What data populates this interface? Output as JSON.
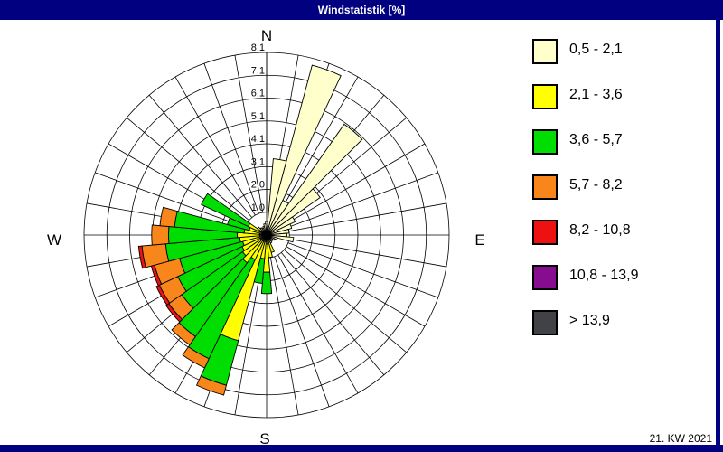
{
  "title_bar": {
    "title": "Windstatistik [%]"
  },
  "status_bar": {
    "week_label": "21. KW 2021"
  },
  "colors": {
    "frame": "#000080",
    "background": "#ffffff",
    "grid": "#000000",
    "cream": "#ffffcc",
    "yellow": "#ffff00",
    "green": "#00dd00",
    "orange": "#f8861b",
    "red": "#ee1111",
    "purple": "#880c90",
    "gray": "#404245"
  },
  "legend": {
    "items": [
      {
        "label": "0,5 - 2,1",
        "color": "#ffffcc"
      },
      {
        "label": "2,1 - 3,6",
        "color": "#ffff00"
      },
      {
        "label": "3,6 - 5,7",
        "color": "#00dd00"
      },
      {
        "label": "5,7 - 8,2",
        "color": "#f8861b"
      },
      {
        "label": "8,2 - 10,8",
        "color": "#ee1111"
      },
      {
        "label": "10,8 - 13,9",
        "color": "#880c90"
      },
      {
        "label": "> 13,9",
        "color": "#404245"
      }
    ]
  },
  "chart_data": {
    "type": "windrose-stacked-bar",
    "unit": "%",
    "title": "Windstatistik [%]",
    "compass_labels": {
      "n": "N",
      "e": "E",
      "s": "S",
      "w": "W"
    },
    "ring_labels": [
      "1,0",
      "2,0",
      "3,1",
      "4,1",
      "5,1",
      "6,1",
      "7,1",
      "8,1"
    ],
    "max_value": 8.1,
    "rings": 8,
    "sector_width_deg": 10,
    "speed_classes": [
      "0,5 - 2,1",
      "2,1 - 3,6",
      "3,6 - 5,7",
      "5,7 - 8,2",
      "8,2 - 10,8",
      "10,8 - 13,9",
      "> 13,9"
    ],
    "sectors": [
      {
        "azimuth": 0,
        "cumulative": [
          0.6
        ]
      },
      {
        "azimuth": 10,
        "cumulative": [
          3.4
        ]
      },
      {
        "azimuth": 20,
        "cumulative": [
          7.8
        ]
      },
      {
        "azimuth": 30,
        "cumulative": [
          1.7
        ]
      },
      {
        "azimuth": 40,
        "cumulative": [
          6.0
        ]
      },
      {
        "azimuth": 50,
        "cumulative": [
          2.9
        ]
      },
      {
        "azimuth": 60,
        "cumulative": [
          1.4
        ]
      },
      {
        "azimuth": 70,
        "cumulative": [
          1.15
        ]
      },
      {
        "azimuth": 80,
        "cumulative": [
          1.0
        ]
      },
      {
        "azimuth": 90,
        "cumulative": [
          0.9
        ]
      },
      {
        "azimuth": 100,
        "cumulative": [
          1.2
        ]
      },
      {
        "azimuth": 110,
        "cumulative": [
          0.5
        ]
      },
      {
        "azimuth": 120,
        "cumulative": [
          0.4
        ]
      },
      {
        "azimuth": 130,
        "cumulative": [
          0.35
        ]
      },
      {
        "azimuth": 140,
        "cumulative": [
          0.35
        ]
      },
      {
        "azimuth": 150,
        "cumulative": [
          0.4
        ]
      },
      {
        "azimuth": 160,
        "cumulative": [
          0.3,
          0.8
        ]
      },
      {
        "azimuth": 170,
        "cumulative": [
          0.3,
          1.0
        ]
      },
      {
        "azimuth": 180,
        "cumulative": [
          0.4,
          1.65,
          2.6
        ]
      },
      {
        "azimuth": 190,
        "cumulative": [
          0.3,
          1.05,
          2.15
        ]
      },
      {
        "azimuth": 200,
        "cumulative": [
          0.3,
          4.85,
          6.9,
          7.35
        ]
      },
      {
        "azimuth": 210,
        "cumulative": [
          0.3,
          1.2,
          6.05,
          6.5
        ]
      },
      {
        "azimuth": 220,
        "cumulative": [
          0.3,
          1.5,
          5.5,
          5.95
        ]
      },
      {
        "azimuth": 230,
        "cumulative": [
          0.3,
          1.3,
          4.6,
          5.3,
          5.45
        ]
      },
      {
        "azimuth": 240,
        "cumulative": [
          0.3,
          1.2,
          4.35,
          5.25,
          5.4
        ]
      },
      {
        "azimuth": 250,
        "cumulative": [
          0.3,
          1.1,
          4.0,
          5.15,
          5.3
        ]
      },
      {
        "azimuth": 260,
        "cumulative": [
          0.3,
          1.2,
          4.5,
          5.55,
          5.7
        ]
      },
      {
        "azimuth": 270,
        "cumulative": [
          0.3,
          1.3,
          4.35,
          5.1
        ]
      },
      {
        "azimuth": 280,
        "cumulative": [
          0.3,
          1.0,
          4.1,
          4.75
        ]
      },
      {
        "azimuth": 290,
        "cumulative": [
          0.3,
          0.8,
          1.8
        ]
      },
      {
        "azimuth": 300,
        "cumulative": [
          0.3,
          0.9,
          3.2
        ]
      },
      {
        "azimuth": 310,
        "cumulative": [
          0.5
        ]
      },
      {
        "azimuth": 320,
        "cumulative": [
          0.4
        ]
      },
      {
        "azimuth": 330,
        "cumulative": [
          0.35
        ]
      },
      {
        "azimuth": 340,
        "cumulative": [
          0.4
        ]
      },
      {
        "azimuth": 350,
        "cumulative": [
          0.5
        ]
      }
    ]
  }
}
